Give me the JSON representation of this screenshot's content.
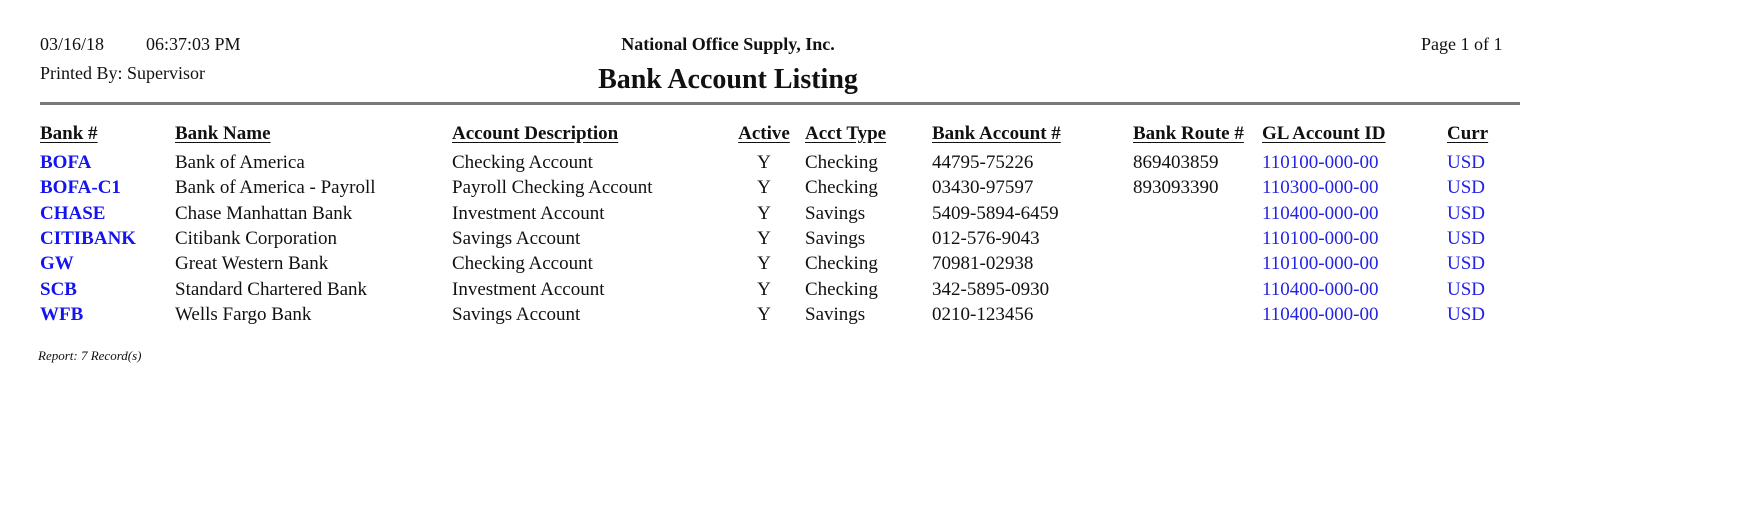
{
  "header": {
    "date": "03/16/18",
    "time": "06:37:03 PM",
    "printed_by": "Printed By: Supervisor",
    "company": "National Office Supply, Inc.",
    "title": "Bank Account Listing",
    "page": "Page 1 of  1"
  },
  "columns": [
    "Bank #",
    "Bank Name",
    "Account Description",
    "Active",
    "Acct Type",
    "Bank Account #",
    "Bank Route #",
    "GL Account ID",
    "Curr"
  ],
  "rows": [
    [
      "BOFA",
      "Bank of America",
      "Checking Account",
      "Y",
      "Checking",
      "44795-75226",
      "869403859",
      "110100-000-00",
      "USD"
    ],
    [
      "BOFA-C1",
      "Bank of America - Payroll",
      "Payroll Checking Account",
      "Y",
      "Checking",
      "03430-97597",
      "893093390",
      "110300-000-00",
      "USD"
    ],
    [
      "CHASE",
      "Chase Manhattan Bank",
      "Investment Account",
      "Y",
      "Savings",
      "5409-5894-6459",
      "",
      "110400-000-00",
      "USD"
    ],
    [
      "CITIBANK",
      "Citibank Corporation",
      "Savings Account",
      "Y",
      "Savings",
      "012-576-9043",
      "",
      "110100-000-00",
      "USD"
    ],
    [
      "GW",
      "Great Western Bank",
      "Checking Account",
      "Y",
      "Checking",
      "70981-02938",
      "",
      "110100-000-00",
      "USD"
    ],
    [
      "SCB",
      "Standard Chartered Bank",
      "Investment Account",
      "Y",
      "Checking",
      "342-5895-0930",
      "",
      "110400-000-00",
      "USD"
    ],
    [
      "WFB",
      "Wells Fargo Bank",
      "Savings Account",
      "Y",
      "Savings",
      "0210-123456",
      "",
      "110400-000-00",
      "USD"
    ]
  ],
  "footer": "Report: 7 Record(s)",
  "colors": {
    "link": "#1414f0",
    "rule": "#7a7a7a"
  }
}
